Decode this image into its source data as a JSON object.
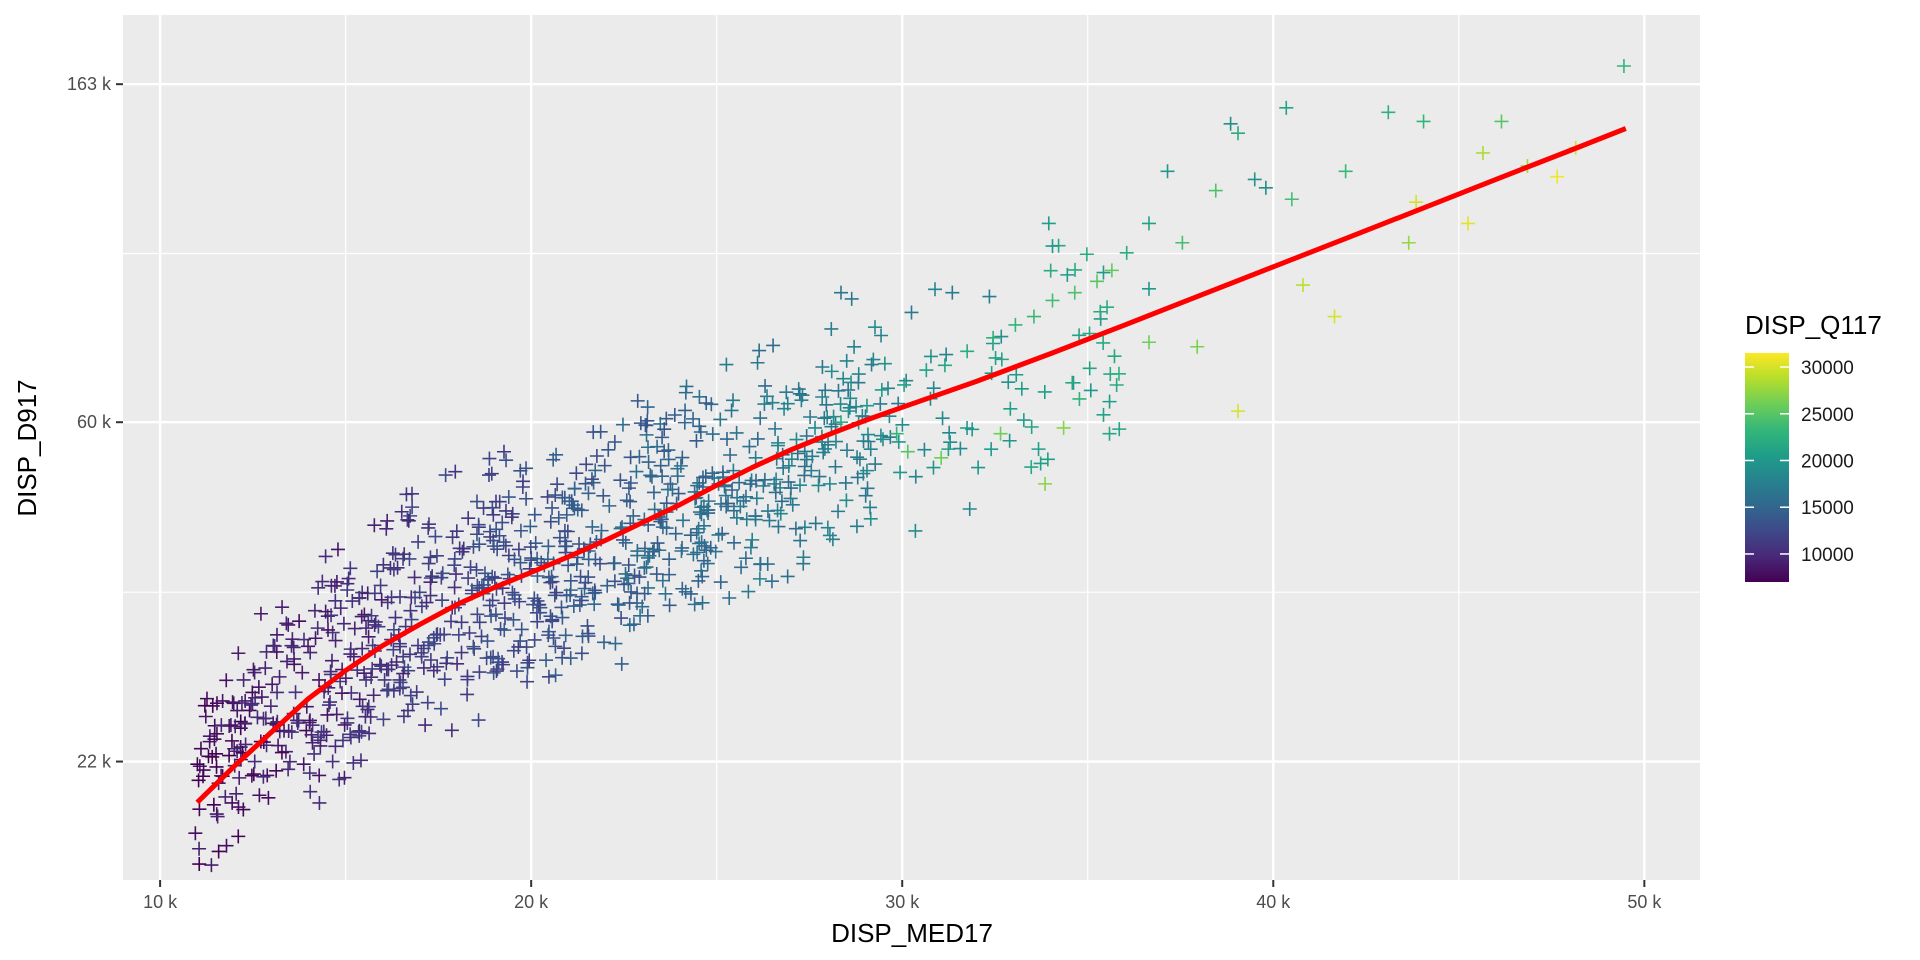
{
  "chart_data": {
    "type": "scatter",
    "title": "",
    "xlabel": "DISP_MED17",
    "ylabel": "DISP_D917",
    "x_scale": "linear",
    "y_scale": "log",
    "xlim": [
      9000,
      51500
    ],
    "ylim": [
      15500,
      200000
    ],
    "x_ticks": [
      10000,
      20000,
      30000,
      40000,
      50000
    ],
    "x_tick_labels": [
      "10 k",
      "20 k",
      "30 k",
      "40 k",
      "50 k"
    ],
    "x_minor_ticks": [
      15000,
      25000,
      35000,
      45000
    ],
    "y_ticks": [
      22000,
      60000,
      163000
    ],
    "y_tick_labels": [
      "22 k",
      "60 k",
      "163 k"
    ],
    "y_minor_ticks": [
      36300,
      98800
    ],
    "grid": true,
    "marker": "plus",
    "color_legend": {
      "title": "DISP_Q117",
      "position": "right",
      "min": 7000,
      "max": 31500,
      "breaks": [
        10000,
        15000,
        20000,
        25000,
        30000
      ],
      "break_labels": [
        "10000",
        "15000",
        "20000",
        "25000",
        "30000"
      ],
      "colormap": [
        "#440154",
        "#482878",
        "#3e4989",
        "#31688e",
        "#26828e",
        "#1f9e89",
        "#35b779",
        "#6ece58",
        "#b5de2b",
        "#fde725"
      ]
    },
    "notable_points": {
      "x": [
        49450,
        40350,
        43100,
        44050,
        46150,
        38850,
        39050,
        37150,
        39500,
        39800,
        41950,
        36650,
        40500,
        38450,
        33950,
        34050,
        37550,
        36050,
        36650,
        28350,
        30250,
        31350,
        32350,
        43850,
        43650,
        45250,
        45650,
        46850,
        47650,
        48150,
        40800,
        41650,
        39050,
        36650,
        37950,
        33850,
        11050,
        10950,
        11550,
        11650,
        12450,
        13050,
        13150,
        12250,
        12850,
        13650,
        14350,
        14650,
        15350,
        16450,
        16950,
        17450,
        18050,
        18550,
        18950,
        19550,
        20450,
        21550,
        22450,
        23050,
        23650,
        24450,
        25050,
        25450,
        26050,
        26650,
        27150,
        27650,
        28150,
        28550,
        29050,
        29450,
        30050,
        30650,
        31150,
        31750,
        32450,
        33050,
        33550,
        34050,
        34650,
        35250,
        35650,
        28350,
        29850,
        30150,
        31050,
        32650,
        34350,
        13450,
        14150,
        15050,
        16050,
        17050,
        18050,
        19050,
        20050,
        21050,
        22050,
        23050,
        24050,
        25050,
        26050,
        27050,
        28050,
        29050,
        12050,
        12550,
        13550,
        14550,
        15550,
        16550,
        17550,
        18550,
        19550,
        20550,
        21550,
        22550,
        23550,
        24550,
        25550,
        26550,
        27550
      ],
      "y": [
        172000,
        152000,
        150000,
        146000,
        146000,
        145000,
        141000,
        126000,
        123000,
        120000,
        126000,
        108000,
        116000,
        119000,
        108000,
        101000,
        102000,
        99000,
        89000,
        88000,
        83000,
        88000,
        87000,
        115000,
        102000,
        108000,
        133000,
        128000,
        124000,
        135000,
        90000,
        82000,
        62000,
        76000,
        75000,
        50000,
        17000,
        17800,
        18700,
        24500,
        26000,
        31000,
        32000,
        28000,
        25000,
        27000,
        24000,
        22000,
        24000,
        28000,
        31000,
        32000,
        35000,
        37000,
        38000,
        40000,
        40000,
        41000,
        44000,
        45000,
        46000,
        48000,
        50000,
        52000,
        54000,
        56000,
        57000,
        59000,
        61000,
        62000,
        63000,
        66000,
        67000,
        70000,
        71000,
        74000,
        77000,
        80000,
        82000,
        86000,
        88000,
        91000,
        94000,
        60000,
        58000,
        55000,
        54000,
        58000,
        59000,
        21500,
        22500,
        25000,
        28000,
        30000,
        32000,
        34000,
        35000,
        36000,
        37000,
        39000,
        41000,
        43000,
        45000,
        47000,
        50000,
        52000,
        20000,
        22000,
        24000,
        26000,
        28000,
        30000,
        32000,
        34000,
        36000,
        38000,
        40000,
        42000,
        44000,
        46000,
        48000,
        50000,
        52000
      ],
      "color_value": [
        23000,
        21000,
        22500,
        23000,
        25000,
        19000,
        22000,
        20000,
        19500,
        19000,
        23500,
        21000,
        24000,
        24500,
        20500,
        20000,
        24000,
        22000,
        20000,
        16500,
        17000,
        17000,
        17500,
        30000,
        27500,
        30500,
        28500,
        28000,
        31000,
        30000,
        29000,
        30000,
        30000,
        26000,
        26500,
        27000,
        9000,
        8000,
        9500,
        9500,
        10000,
        10000,
        9000,
        9500,
        10000,
        10500,
        11000,
        10500,
        11000,
        11000,
        11000,
        11500,
        12000,
        12500,
        13000,
        13500,
        14500,
        15000,
        15500,
        16000,
        16000,
        16500,
        17000,
        17000,
        17500,
        18000,
        18500,
        18500,
        19000,
        19500,
        20000,
        20500,
        21000,
        21000,
        21500,
        22000,
        22500,
        23000,
        23500,
        24000,
        24500,
        25000,
        25500,
        22000,
        23000,
        25000,
        26000,
        26000,
        27000,
        10000,
        10500,
        11000,
        11000,
        11500,
        12500,
        13000,
        13500,
        14000,
        14500,
        15500,
        16000,
        16500,
        17000,
        17500,
        18000,
        18500,
        9500,
        10000,
        10500,
        10500,
        11000,
        11500,
        12000,
        12500,
        13000,
        14000,
        14500,
        15000,
        15500,
        16000,
        16500,
        17000,
        17500
      ]
    },
    "density_bands": [
      {
        "x_min": 11000,
        "x_max": 14000,
        "y_center_rel": [
          -0.05,
          0.12
        ],
        "n": 120
      },
      {
        "x_min": 14000,
        "x_max": 19000,
        "y_center_rel": [
          -0.12,
          0.14
        ],
        "n": 260
      },
      {
        "x_min": 19000,
        "x_max": 25000,
        "y_center_rel": [
          -0.12,
          0.12
        ],
        "n": 320
      },
      {
        "x_min": 25000,
        "x_max": 29500,
        "y_center_rel": [
          -0.13,
          0.12
        ],
        "n": 160
      },
      {
        "x_min": 29500,
        "x_max": 36000,
        "y_center_rel": [
          -0.14,
          0.1
        ],
        "n": 70
      }
    ],
    "trend_line": {
      "color": "#ff0000",
      "x": [
        11000,
        12000,
        13000,
        14000,
        15000,
        16000,
        17000,
        18000,
        19000,
        20000,
        21000,
        22000,
        23000,
        24000,
        25000,
        26000,
        27000,
        28000,
        29000,
        30000,
        32000,
        34000,
        36000,
        38000,
        40000,
        42000,
        44000,
        46000,
        48000,
        49500
      ],
      "y": [
        19500,
        21700,
        24000,
        26500,
        28800,
        31000,
        33000,
        35000,
        36800,
        38500,
        40300,
        42300,
        44600,
        47000,
        49800,
        52600,
        55300,
        57800,
        60300,
        62700,
        67700,
        73500,
        80000,
        87200,
        95000,
        103500,
        112800,
        123000,
        134000,
        143000
      ]
    }
  }
}
